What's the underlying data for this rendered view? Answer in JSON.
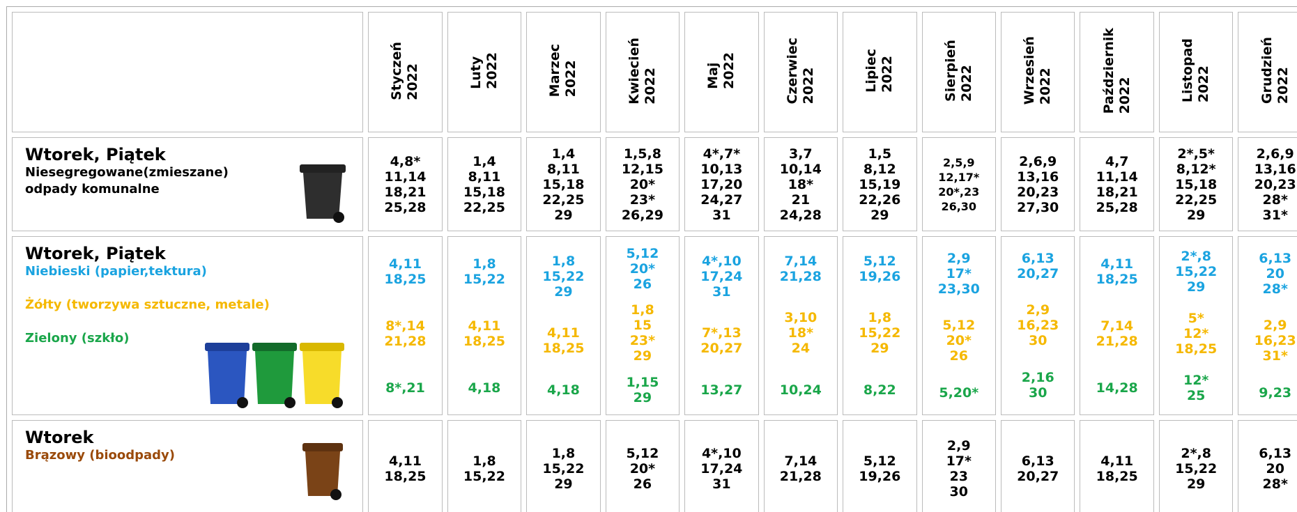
{
  "header": {
    "months": [
      {
        "month": "Styczeń",
        "year": "2022"
      },
      {
        "month": "Luty",
        "year": "2022"
      },
      {
        "month": "Marzec",
        "year": "2022"
      },
      {
        "month": "Kwiecień",
        "year": "2022"
      },
      {
        "month": "Maj",
        "year": "2022"
      },
      {
        "month": "Czerwiec",
        "year": "2022"
      },
      {
        "month": "Lipiec",
        "year": "2022"
      },
      {
        "month": "Sierpień",
        "year": "2022"
      },
      {
        "month": "Wrzesień",
        "year": "2022"
      },
      {
        "month": "Październik",
        "year": "2022"
      },
      {
        "month": "Listopad",
        "year": "2022"
      },
      {
        "month": "Grudzień",
        "year": "2022"
      }
    ]
  },
  "rows": [
    {
      "title": "Wtorek, Piątek",
      "layout": "center",
      "lines": [
        {
          "text": "Niesegregowane(zmieszane)",
          "color": "#000000"
        },
        {
          "text": "odpady komunalne",
          "color": "#000000"
        }
      ],
      "cells": [
        [
          {
            "color": "#000000",
            "lines": [
              "4,8*",
              "11,14",
              "18,21",
              "25,28"
            ]
          }
        ],
        [
          {
            "color": "#000000",
            "lines": [
              "1,4",
              "8,11",
              "15,18",
              "22,25"
            ]
          }
        ],
        [
          {
            "color": "#000000",
            "lines": [
              "1,4",
              "8,11",
              "15,18",
              "22,25",
              "29"
            ]
          }
        ],
        [
          {
            "color": "#000000",
            "lines": [
              "1,5,8",
              "12,15",
              "20*",
              "23*",
              "26,29"
            ]
          }
        ],
        [
          {
            "color": "#000000",
            "lines": [
              "4*,7*",
              "10,13",
              "17,20",
              "24,27",
              "31"
            ]
          }
        ],
        [
          {
            "color": "#000000",
            "lines": [
              "3,7",
              "10,14",
              "18*",
              "21",
              "24,28"
            ]
          }
        ],
        [
          {
            "color": "#000000",
            "lines": [
              "1,5",
              "8,12",
              "15,19",
              "22,26",
              "29"
            ]
          }
        ],
        [
          {
            "color": "#000000",
            "size": "small",
            "lines": [
              "2,5,9",
              "12,17*",
              "20*,23",
              "26,30"
            ]
          }
        ],
        [
          {
            "color": "#000000",
            "lines": [
              "2,6,9",
              "13,16",
              "20,23",
              "27,30"
            ]
          }
        ],
        [
          {
            "color": "#000000",
            "lines": [
              "4,7",
              "11,14",
              "18,21",
              "25,28"
            ]
          }
        ],
        [
          {
            "color": "#000000",
            "lines": [
              "2*,5*",
              "8,12*",
              "15,18",
              "22,25",
              "29"
            ]
          }
        ],
        [
          {
            "color": "#000000",
            "lines": [
              "2,6,9",
              "13,16",
              "20,23",
              "28*",
              "31*"
            ]
          }
        ]
      ]
    },
    {
      "title": "Wtorek, Piątek",
      "layout": "spread",
      "lines": [
        {
          "text": "Niebieski (papier,tektura)",
          "color": "#1aa3e0"
        },
        {
          "text": "Żółty (tworzywa sztuczne, metale)",
          "color": "#f5b800"
        },
        {
          "text": "Zielony (szkło)",
          "color": "#1aa64a"
        }
      ],
      "cells": [
        [
          {
            "color": "#1aa3e0",
            "lines": [
              "4,11",
              "18,25"
            ]
          },
          {
            "color": "#f5b800",
            "lines": [
              "8*,14",
              "21,28"
            ]
          },
          {
            "color": "#1aa64a",
            "lines": [
              "8*,21"
            ]
          }
        ],
        [
          {
            "color": "#1aa3e0",
            "lines": [
              "1,8",
              "15,22"
            ]
          },
          {
            "color": "#f5b800",
            "lines": [
              "4,11",
              "18,25"
            ]
          },
          {
            "color": "#1aa64a",
            "lines": [
              "4,18"
            ]
          }
        ],
        [
          {
            "color": "#1aa3e0",
            "lines": [
              "1,8",
              "15,22",
              "29"
            ]
          },
          {
            "color": "#f5b800",
            "lines": [
              "4,11",
              "18,25"
            ]
          },
          {
            "color": "#1aa64a",
            "lines": [
              "4,18"
            ]
          }
        ],
        [
          {
            "color": "#1aa3e0",
            "lines": [
              "5,12",
              "20*",
              "26"
            ]
          },
          {
            "color": "#f5b800",
            "lines": [
              "1,8",
              "15",
              "23*",
              "29"
            ]
          },
          {
            "color": "#1aa64a",
            "lines": [
              "1,15",
              "29"
            ]
          }
        ],
        [
          {
            "color": "#1aa3e0",
            "lines": [
              "4*,10",
              "17,24",
              "31"
            ]
          },
          {
            "color": "#f5b800",
            "lines": [
              "7*,13",
              "20,27"
            ]
          },
          {
            "color": "#1aa64a",
            "lines": [
              "13,27"
            ]
          }
        ],
        [
          {
            "color": "#1aa3e0",
            "lines": [
              "7,14",
              "21,28"
            ]
          },
          {
            "color": "#f5b800",
            "lines": [
              "3,10",
              "18*",
              "24"
            ]
          },
          {
            "color": "#1aa64a",
            "lines": [
              "10,24"
            ]
          }
        ],
        [
          {
            "color": "#1aa3e0",
            "lines": [
              "5,12",
              "19,26"
            ]
          },
          {
            "color": "#f5b800",
            "lines": [
              "1,8",
              "15,22",
              "29"
            ]
          },
          {
            "color": "#1aa64a",
            "lines": [
              "8,22"
            ]
          }
        ],
        [
          {
            "color": "#1aa3e0",
            "lines": [
              "2,9",
              "17*",
              "23,30"
            ]
          },
          {
            "color": "#f5b800",
            "lines": [
              "5,12",
              "20*",
              "26"
            ]
          },
          {
            "color": "#1aa64a",
            "lines": [
              "5,20*"
            ]
          }
        ],
        [
          {
            "color": "#1aa3e0",
            "lines": [
              "6,13",
              "20,27"
            ]
          },
          {
            "color": "#f5b800",
            "lines": [
              "2,9",
              "16,23",
              "30"
            ]
          },
          {
            "color": "#1aa64a",
            "lines": [
              "2,16",
              "30"
            ]
          }
        ],
        [
          {
            "color": "#1aa3e0",
            "lines": [
              "4,11",
              "18,25"
            ]
          },
          {
            "color": "#f5b800",
            "lines": [
              "7,14",
              "21,28"
            ]
          },
          {
            "color": "#1aa64a",
            "lines": [
              "14,28"
            ]
          }
        ],
        [
          {
            "color": "#1aa3e0",
            "lines": [
              "2*,8",
              "15,22",
              "29"
            ]
          },
          {
            "color": "#f5b800",
            "lines": [
              "5*",
              "12*",
              "18,25"
            ]
          },
          {
            "color": "#1aa64a",
            "lines": [
              "12*",
              "25"
            ]
          }
        ],
        [
          {
            "color": "#1aa3e0",
            "lines": [
              "6,13",
              "20",
              "28*"
            ]
          },
          {
            "color": "#f5b800",
            "lines": [
              "2,9",
              "16,23",
              "31*"
            ]
          },
          {
            "color": "#1aa64a",
            "lines": [
              "9,23"
            ]
          }
        ]
      ]
    },
    {
      "title": "Wtorek",
      "layout": "center",
      "lines": [
        {
          "text": "Brązowy (bioodpady)",
          "color": "#9a4a0a"
        }
      ],
      "cells": [
        [
          {
            "color": "#000000",
            "lines": [
              "4,11",
              "18,25"
            ]
          }
        ],
        [
          {
            "color": "#000000",
            "lines": [
              "1,8",
              "15,22"
            ]
          }
        ],
        [
          {
            "color": "#000000",
            "lines": [
              "1,8",
              "15,22",
              "29"
            ]
          }
        ],
        [
          {
            "color": "#000000",
            "lines": [
              "5,12",
              "20*",
              "26"
            ]
          }
        ],
        [
          {
            "color": "#000000",
            "lines": [
              "4*,10",
              "17,24",
              "31"
            ]
          }
        ],
        [
          {
            "color": "#000000",
            "lines": [
              "7,14",
              "21,28"
            ]
          }
        ],
        [
          {
            "color": "#000000",
            "lines": [
              "5,12",
              "19,26"
            ]
          }
        ],
        [
          {
            "color": "#000000",
            "lines": [
              "2,9",
              "17*",
              "23",
              "30"
            ]
          }
        ],
        [
          {
            "color": "#000000",
            "lines": [
              "6,13",
              "20,27"
            ]
          }
        ],
        [
          {
            "color": "#000000",
            "lines": [
              "4,11",
              "18,25"
            ]
          }
        ],
        [
          {
            "color": "#000000",
            "lines": [
              "2*,8",
              "15,22",
              "29"
            ]
          }
        ],
        [
          {
            "color": "#000000",
            "lines": [
              "6,13",
              "20",
              "28*"
            ]
          }
        ]
      ]
    }
  ]
}
